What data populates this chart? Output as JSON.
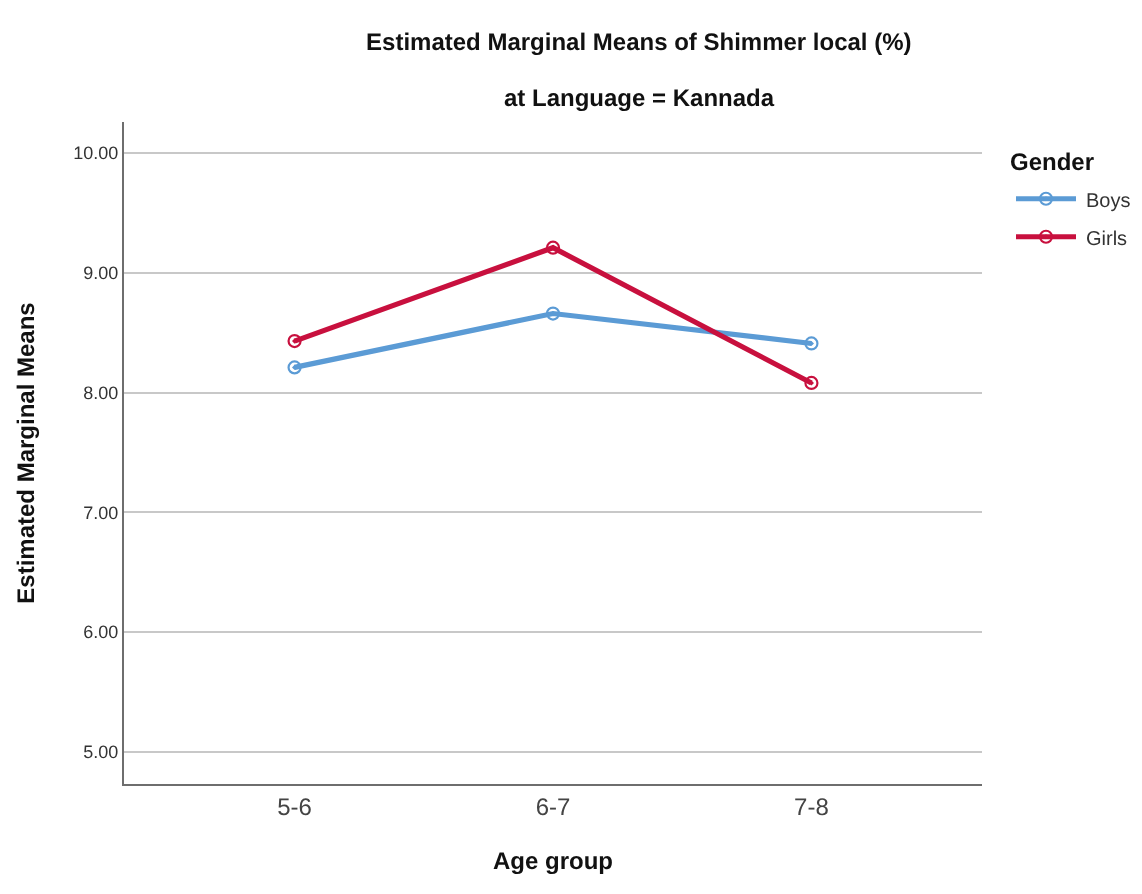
{
  "chart_data": {
    "type": "line",
    "title": "Estimated Marginal Means of Shimmer local (%)",
    "subtitle": "at Language = Kannada",
    "xlabel": "Age group",
    "ylabel": "Estimated Marginal Means",
    "legend_title": "Gender",
    "categories": [
      "5-6",
      "6-7",
      "7-8"
    ],
    "series": [
      {
        "name": "Boys",
        "color": "#5b9bd5",
        "values": [
          8.21,
          8.66,
          8.41
        ]
      },
      {
        "name": "Girls",
        "color": "#c8103e",
        "values": [
          8.43,
          9.21,
          8.08
        ]
      }
    ],
    "ylim": [
      4.73,
      10.26
    ],
    "yticks": [
      {
        "value": 5,
        "label": "5.00"
      },
      {
        "value": 6,
        "label": "6.00"
      },
      {
        "value": 7,
        "label": "7.00"
      },
      {
        "value": 8,
        "label": "8.00"
      },
      {
        "value": 9,
        "label": "9.00"
      },
      {
        "value": 10,
        "label": "10.00"
      }
    ],
    "grid": "y",
    "legend": "top right",
    "marker": "circle",
    "line_style": "solid"
  }
}
